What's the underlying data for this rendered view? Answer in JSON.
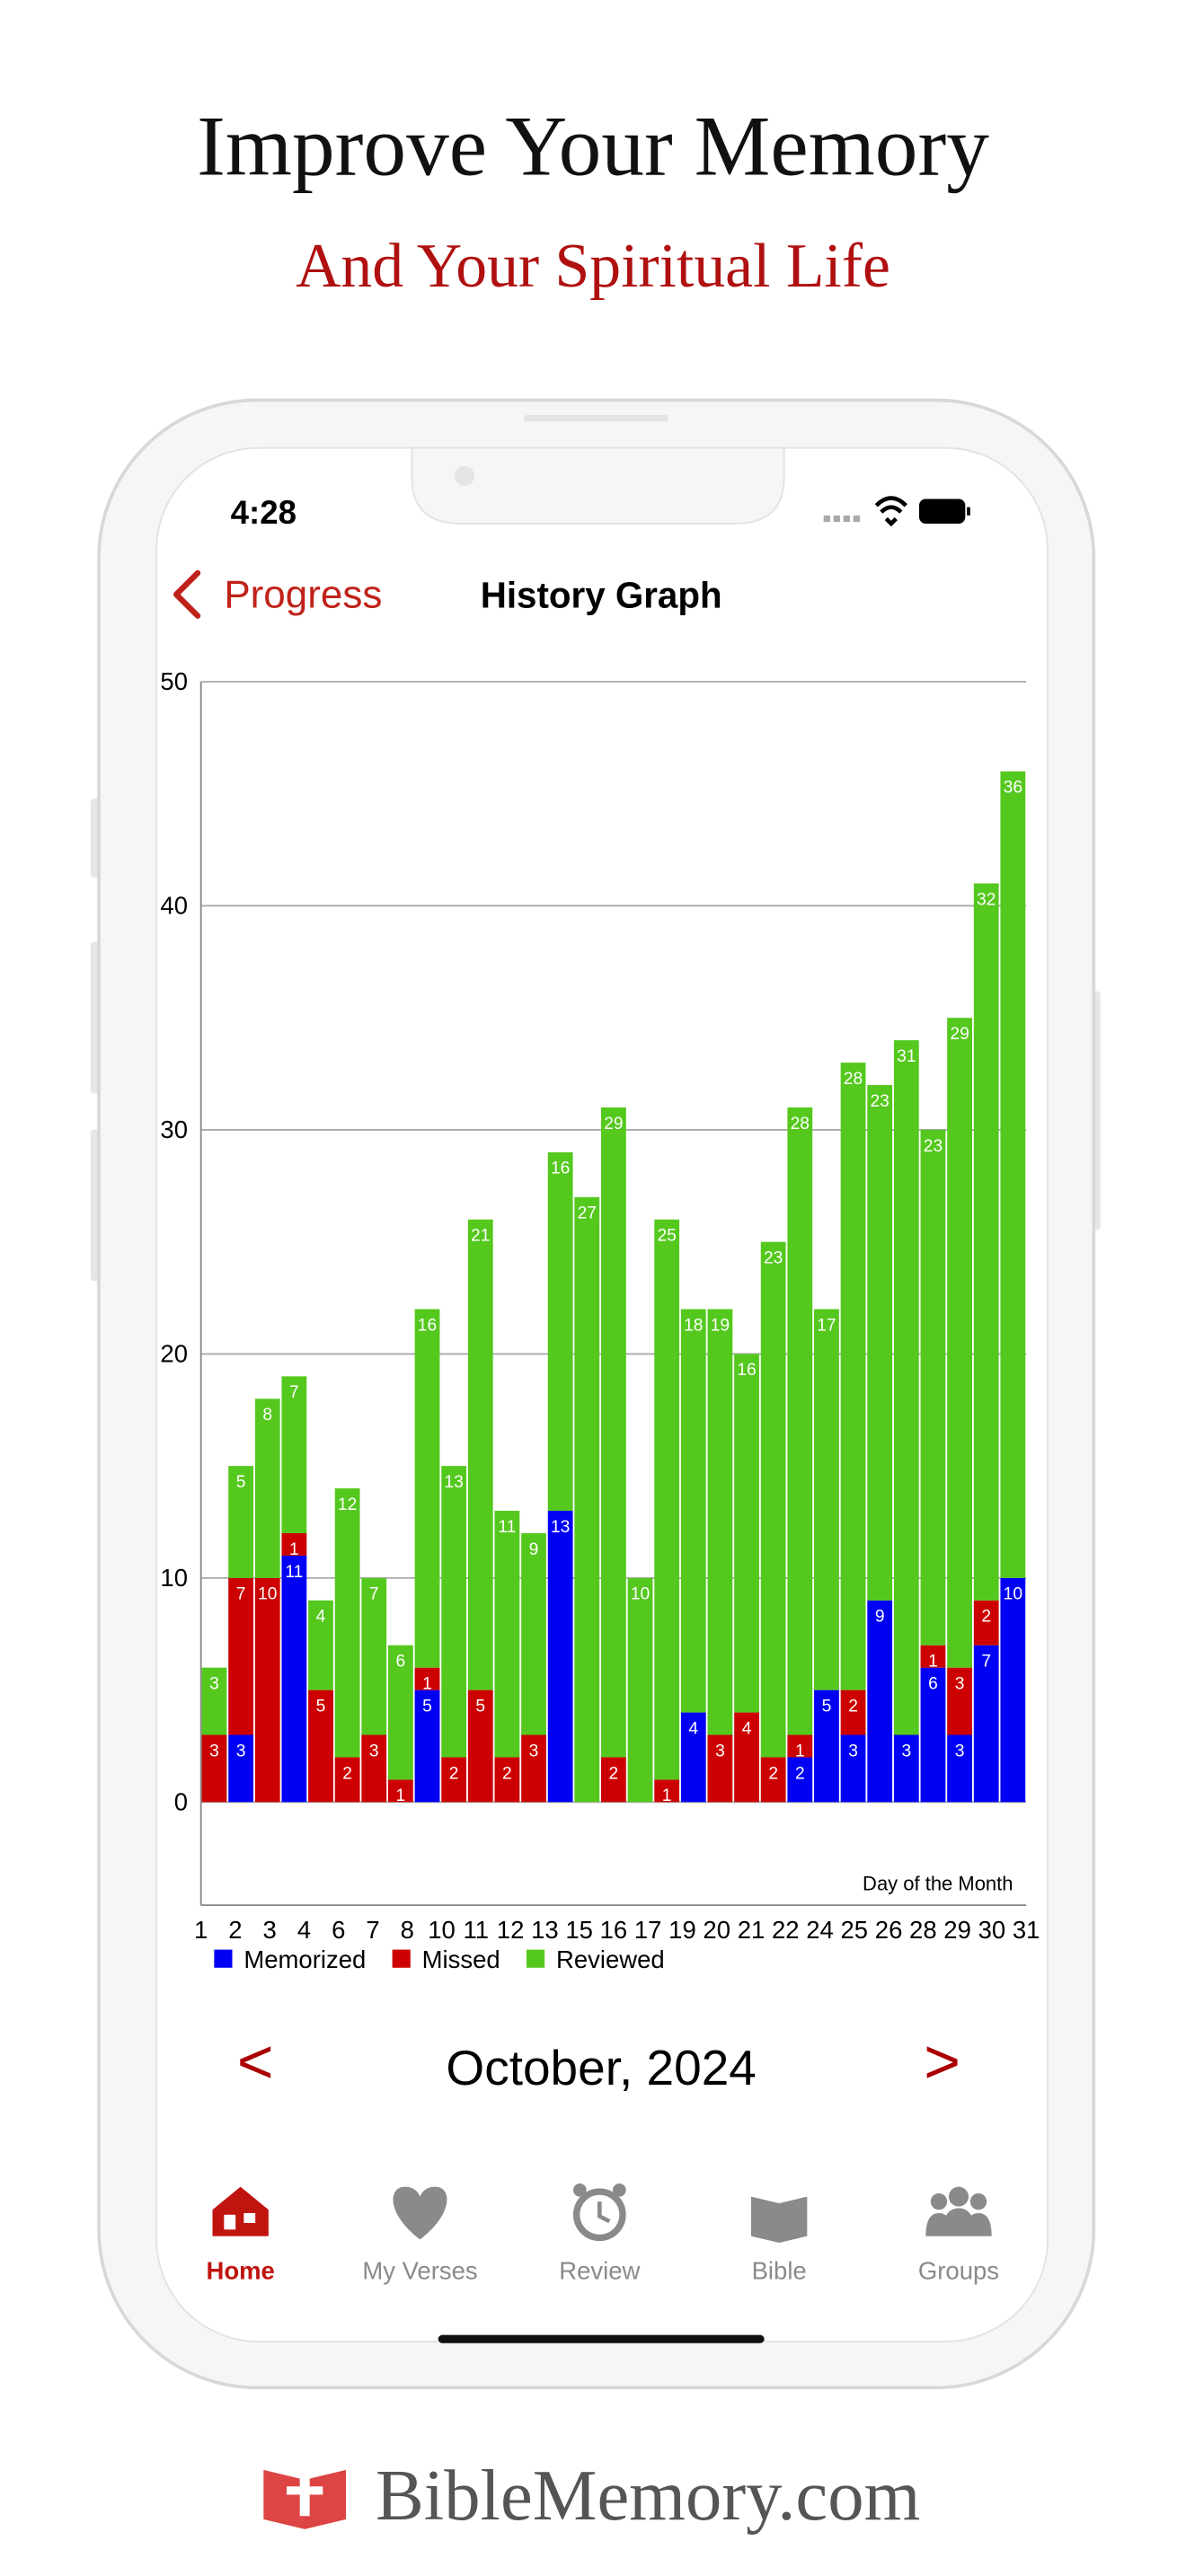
{
  "header": {
    "title": "Improve Your Memory",
    "subtitle": "And Your Spiritual Life"
  },
  "status": {
    "time": "4:28"
  },
  "nav": {
    "back": "Progress",
    "title": "History Graph"
  },
  "chart_data": {
    "type": "bar",
    "stacked": true,
    "xtick_labels": [
      "1",
      "2",
      "3",
      "4",
      "6",
      "7",
      "8",
      "10",
      "11",
      "12",
      "13",
      "15",
      "16",
      "17",
      "19",
      "20",
      "21",
      "22",
      "24",
      "25",
      "26",
      "28",
      "29",
      "30",
      "31"
    ],
    "series": [
      {
        "name": "Memorized",
        "color": "#0000f5",
        "values": [
          0,
          3,
          0,
          11,
          0,
          0,
          0,
          0,
          5,
          0,
          0,
          0,
          0,
          13,
          0,
          0,
          0,
          0,
          4,
          0,
          0,
          0,
          2,
          5,
          3,
          9,
          3,
          6,
          3,
          7,
          10
        ]
      },
      {
        "name": "Missed",
        "color": "#cc0000",
        "values": [
          3,
          7,
          10,
          1,
          5,
          2,
          3,
          1,
          1,
          2,
          5,
          2,
          3,
          0,
          0,
          2,
          0,
          1,
          0,
          3,
          4,
          2,
          1,
          0,
          2,
          0,
          0,
          1,
          3,
          2,
          0
        ]
      },
      {
        "name": "Reviewed",
        "color": "#55c81e",
        "values": [
          3,
          5,
          8,
          7,
          4,
          12,
          7,
          6,
          16,
          13,
          21,
          11,
          9,
          16,
          27,
          29,
          10,
          25,
          18,
          19,
          16,
          23,
          28,
          17,
          28,
          23,
          31,
          23,
          29,
          32,
          36
        ]
      }
    ],
    "annotation": "Day of the Month",
    "ylim": [
      -4.6,
      50
    ],
    "yticks": [
      0,
      10,
      20,
      30,
      40,
      50
    ],
    "grid": true,
    "legend": "bottom-left"
  },
  "month": {
    "prev": "<",
    "label": "October, 2024",
    "next": ">"
  },
  "tabs": [
    "Home",
    "My Verses",
    "Review",
    "Bible",
    "Groups"
  ],
  "footer": {
    "brand": "BibleMemory.com"
  }
}
